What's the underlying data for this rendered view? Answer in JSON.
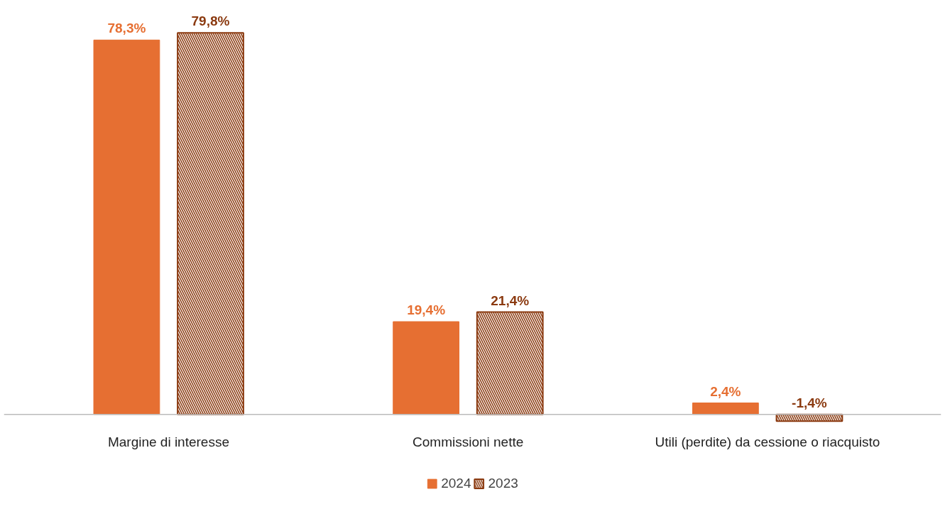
{
  "chart_data": {
    "type": "bar",
    "categories": [
      "Margine di interesse",
      "Commissioni nette",
      "Utili (perdite) da cessione o riacquisto"
    ],
    "series": [
      {
        "name": "2024",
        "color": "#e66f32",
        "values": [
          78.3,
          19.4,
          2.4
        ],
        "value_labels": [
          "78,3%",
          "19,4%",
          "2,4%"
        ]
      },
      {
        "name": "2023",
        "color": "#8b3a10",
        "values": [
          79.8,
          21.4,
          -1.4
        ],
        "value_labels": [
          "79,8%",
          "21,4%",
          "-1,4%"
        ]
      }
    ],
    "legend": "bottom",
    "grid": false,
    "tick_labels": "x"
  }
}
